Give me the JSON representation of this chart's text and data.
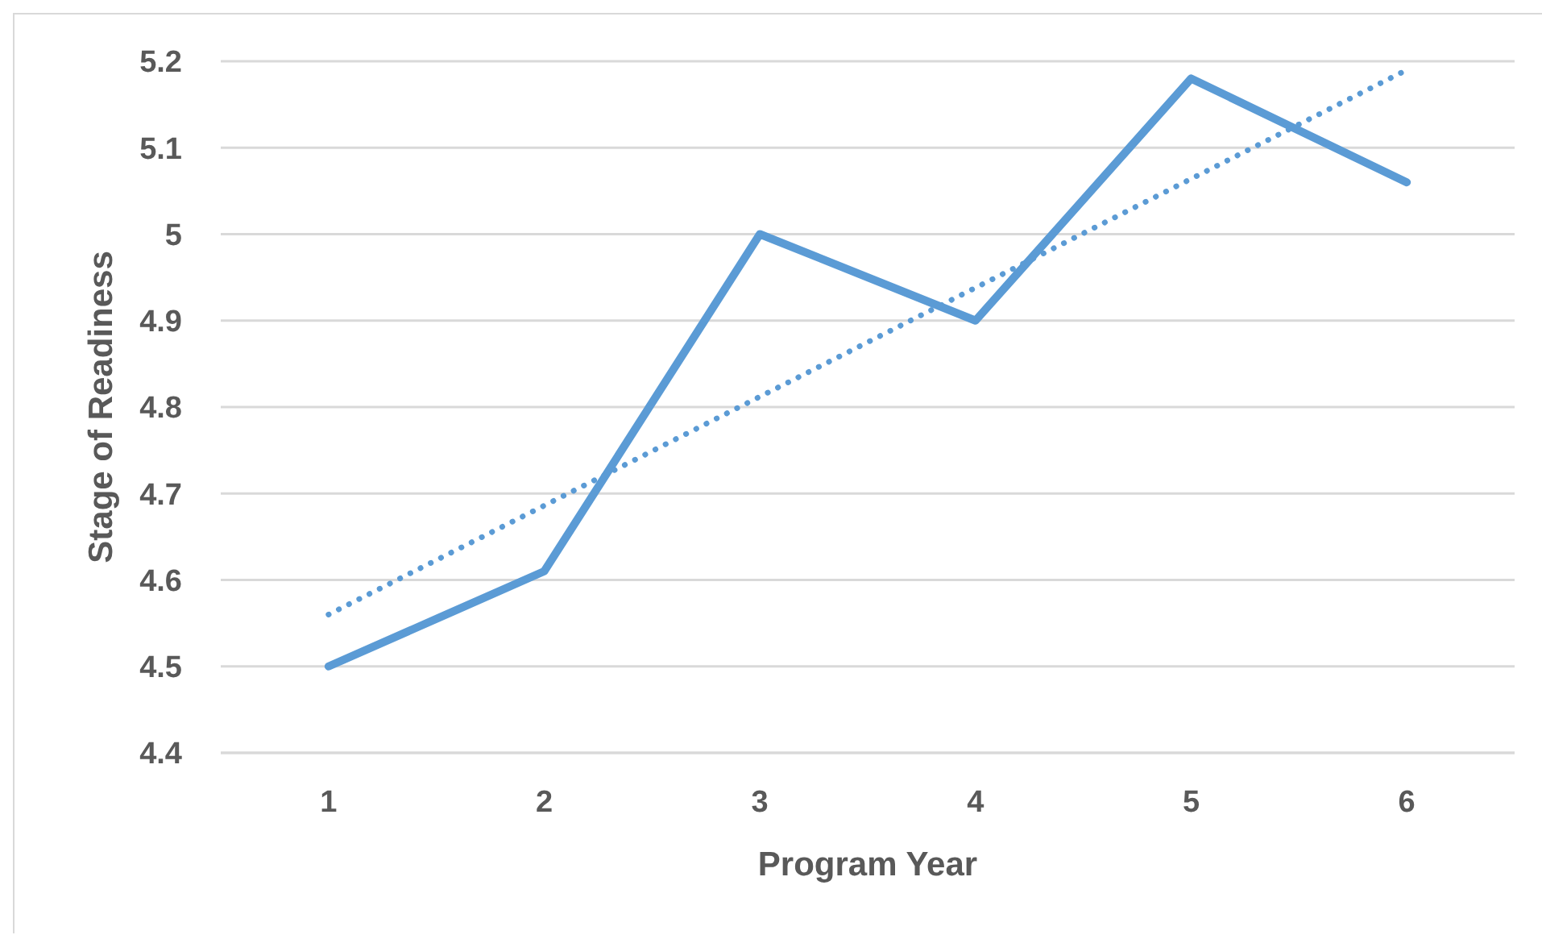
{
  "chart_data": {
    "type": "line",
    "xlabel": "Program Year",
    "ylabel": "Stage of Readiness",
    "x": [
      1,
      2,
      3,
      4,
      5,
      6
    ],
    "xlim": [
      0.5,
      6.5
    ],
    "xticks": [
      1,
      2,
      3,
      4,
      5,
      6
    ],
    "ylim": [
      4.4,
      5.2
    ],
    "yticks": [
      4.4,
      4.5,
      4.6,
      4.7,
      4.8,
      4.9,
      5,
      5.1,
      5.2
    ],
    "grid": "y",
    "line_style": "solid",
    "series": [
      {
        "color": "#5b9bd5",
        "values": [
          4.5,
          4.61,
          5.0,
          4.9,
          5.18,
          5.06
        ]
      },
      {
        "type": "line",
        "x": [
          1,
          6
        ],
        "color": "#5b9bd5",
        "line_style": "dotted",
        "values": [
          4.56,
          5.19
        ]
      }
    ]
  }
}
